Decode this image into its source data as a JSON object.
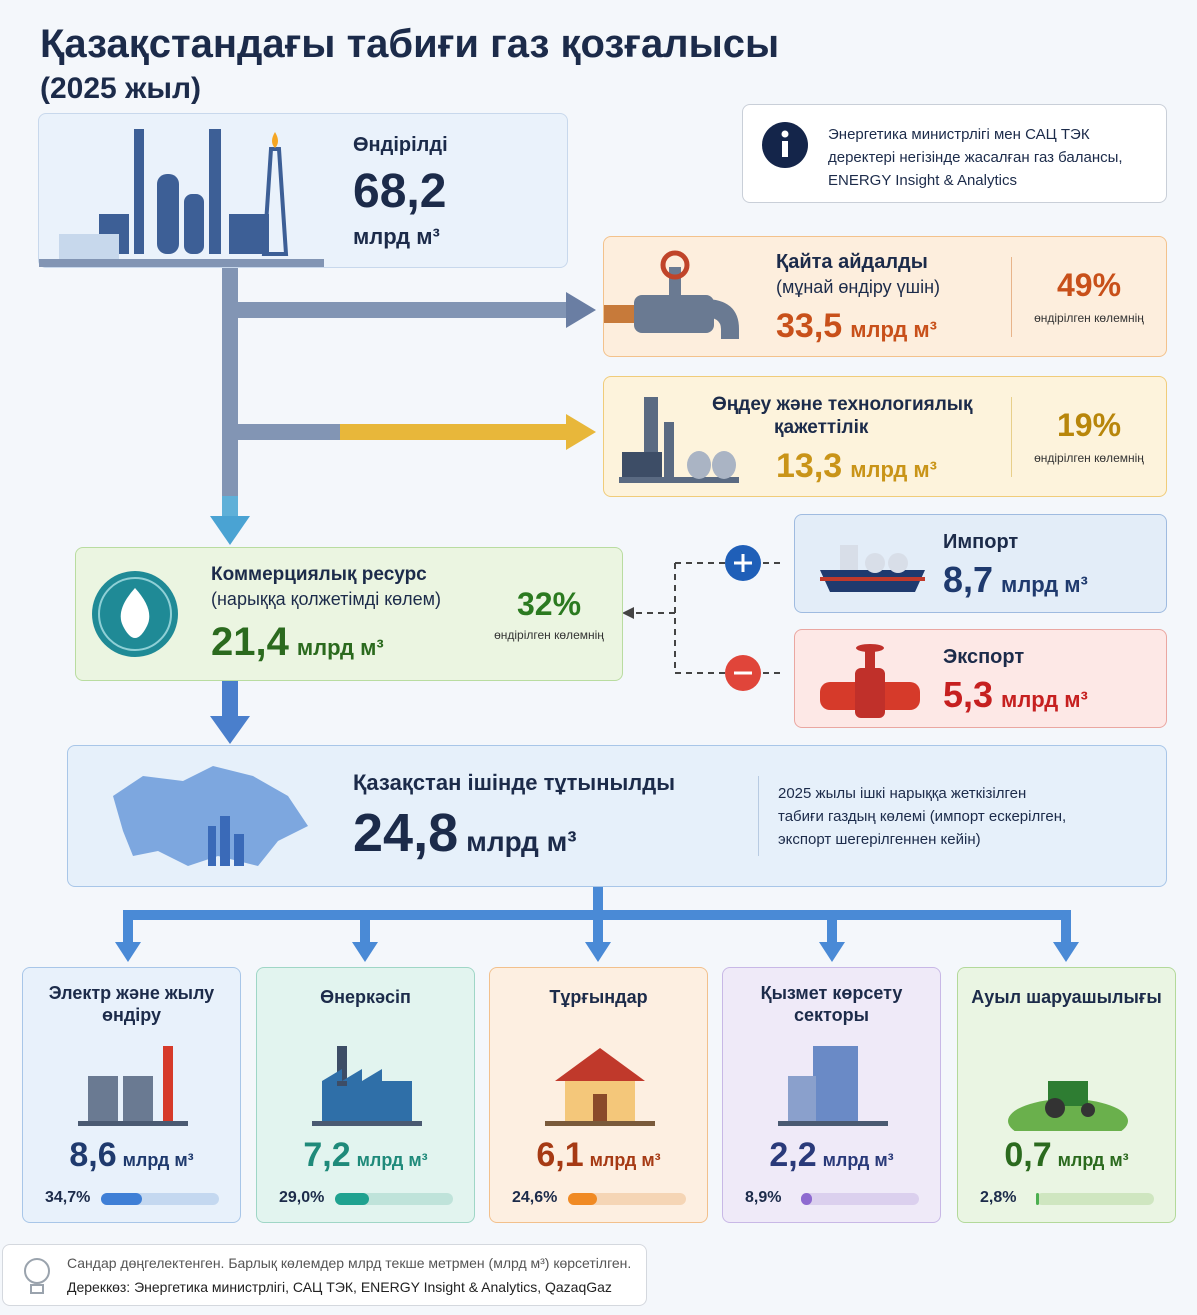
{
  "header": {
    "title": "Қазақстандағы табиғи газ қозғалысы",
    "subtitle": "(2025 жыл)"
  },
  "unit": "млрд м³",
  "share_note": "өндірілген көлемнің",
  "info": {
    "lines": [
      "Энергетика министрлігі мен САЦ ТЭК",
      "деректері негізінде жасалған газ балансы,",
      "ENERGY Insight & Analytics"
    ]
  },
  "production": {
    "label": "Өндірілді",
    "value": "68,2"
  },
  "reinjected": {
    "label": "Қайта айдалды",
    "sublabel": "(мұнай өндіру үшін)",
    "value": "33,5",
    "share": "49%"
  },
  "processing": {
    "label_lines": [
      "Өңдеу және технологиялық",
      "қажеттілік"
    ],
    "value": "13,3",
    "share": "19%"
  },
  "commercial": {
    "label": "Коммерциялық ресурс",
    "sublabel": "(нарыққа қолжетімді көлем)",
    "value": "21,4",
    "share": "32%"
  },
  "import": {
    "label": "Импорт",
    "value": "8,7"
  },
  "export": {
    "label": "Экспорт",
    "value": "5,3"
  },
  "domestic": {
    "label": "Қазақстан ішінде тұтынылды",
    "value": "24,8",
    "description": [
      "2025 жылы ішкі нарыққа жеткізілген",
      "табиғи газдың көлемі (импорт ескерілген,",
      "экспорт шегерілгеннен кейін)"
    ]
  },
  "sectors": [
    {
      "name_lines": [
        "Электр және жылу",
        "өндіру"
      ],
      "value": "8,6",
      "share": {
        "value": 34.7,
        "label": "34,7%"
      }
    },
    {
      "name_lines": [
        "Өнеркәсіп"
      ],
      "value": "7,2",
      "share": {
        "value": 29.0,
        "label": "29,0%"
      }
    },
    {
      "name_lines": [
        "Тұрғындар"
      ],
      "value": "6,1",
      "share": {
        "value": 24.6,
        "label": "24,6%"
      }
    },
    {
      "name_lines": [
        "Қызмет көрсету",
        "секторы"
      ],
      "value": "2,2",
      "share": {
        "value": 8.9,
        "label": "8,9%"
      }
    },
    {
      "name_lines": [
        "Ауыл шаруашылығы"
      ],
      "value": "0,7",
      "share": {
        "value": 2.8,
        "label": "2,8%"
      }
    }
  ],
  "footer": {
    "lines": [
      "Сандар дөңгелектенген. Барлық көлемдер млрд текше метрмен (млрд м³) көрсетілген.",
      "Дереккөз: Энергетика министрлігі, САЦ ТЭК, ENERGY Insight & Analytics, QazaqGaz"
    ]
  }
}
